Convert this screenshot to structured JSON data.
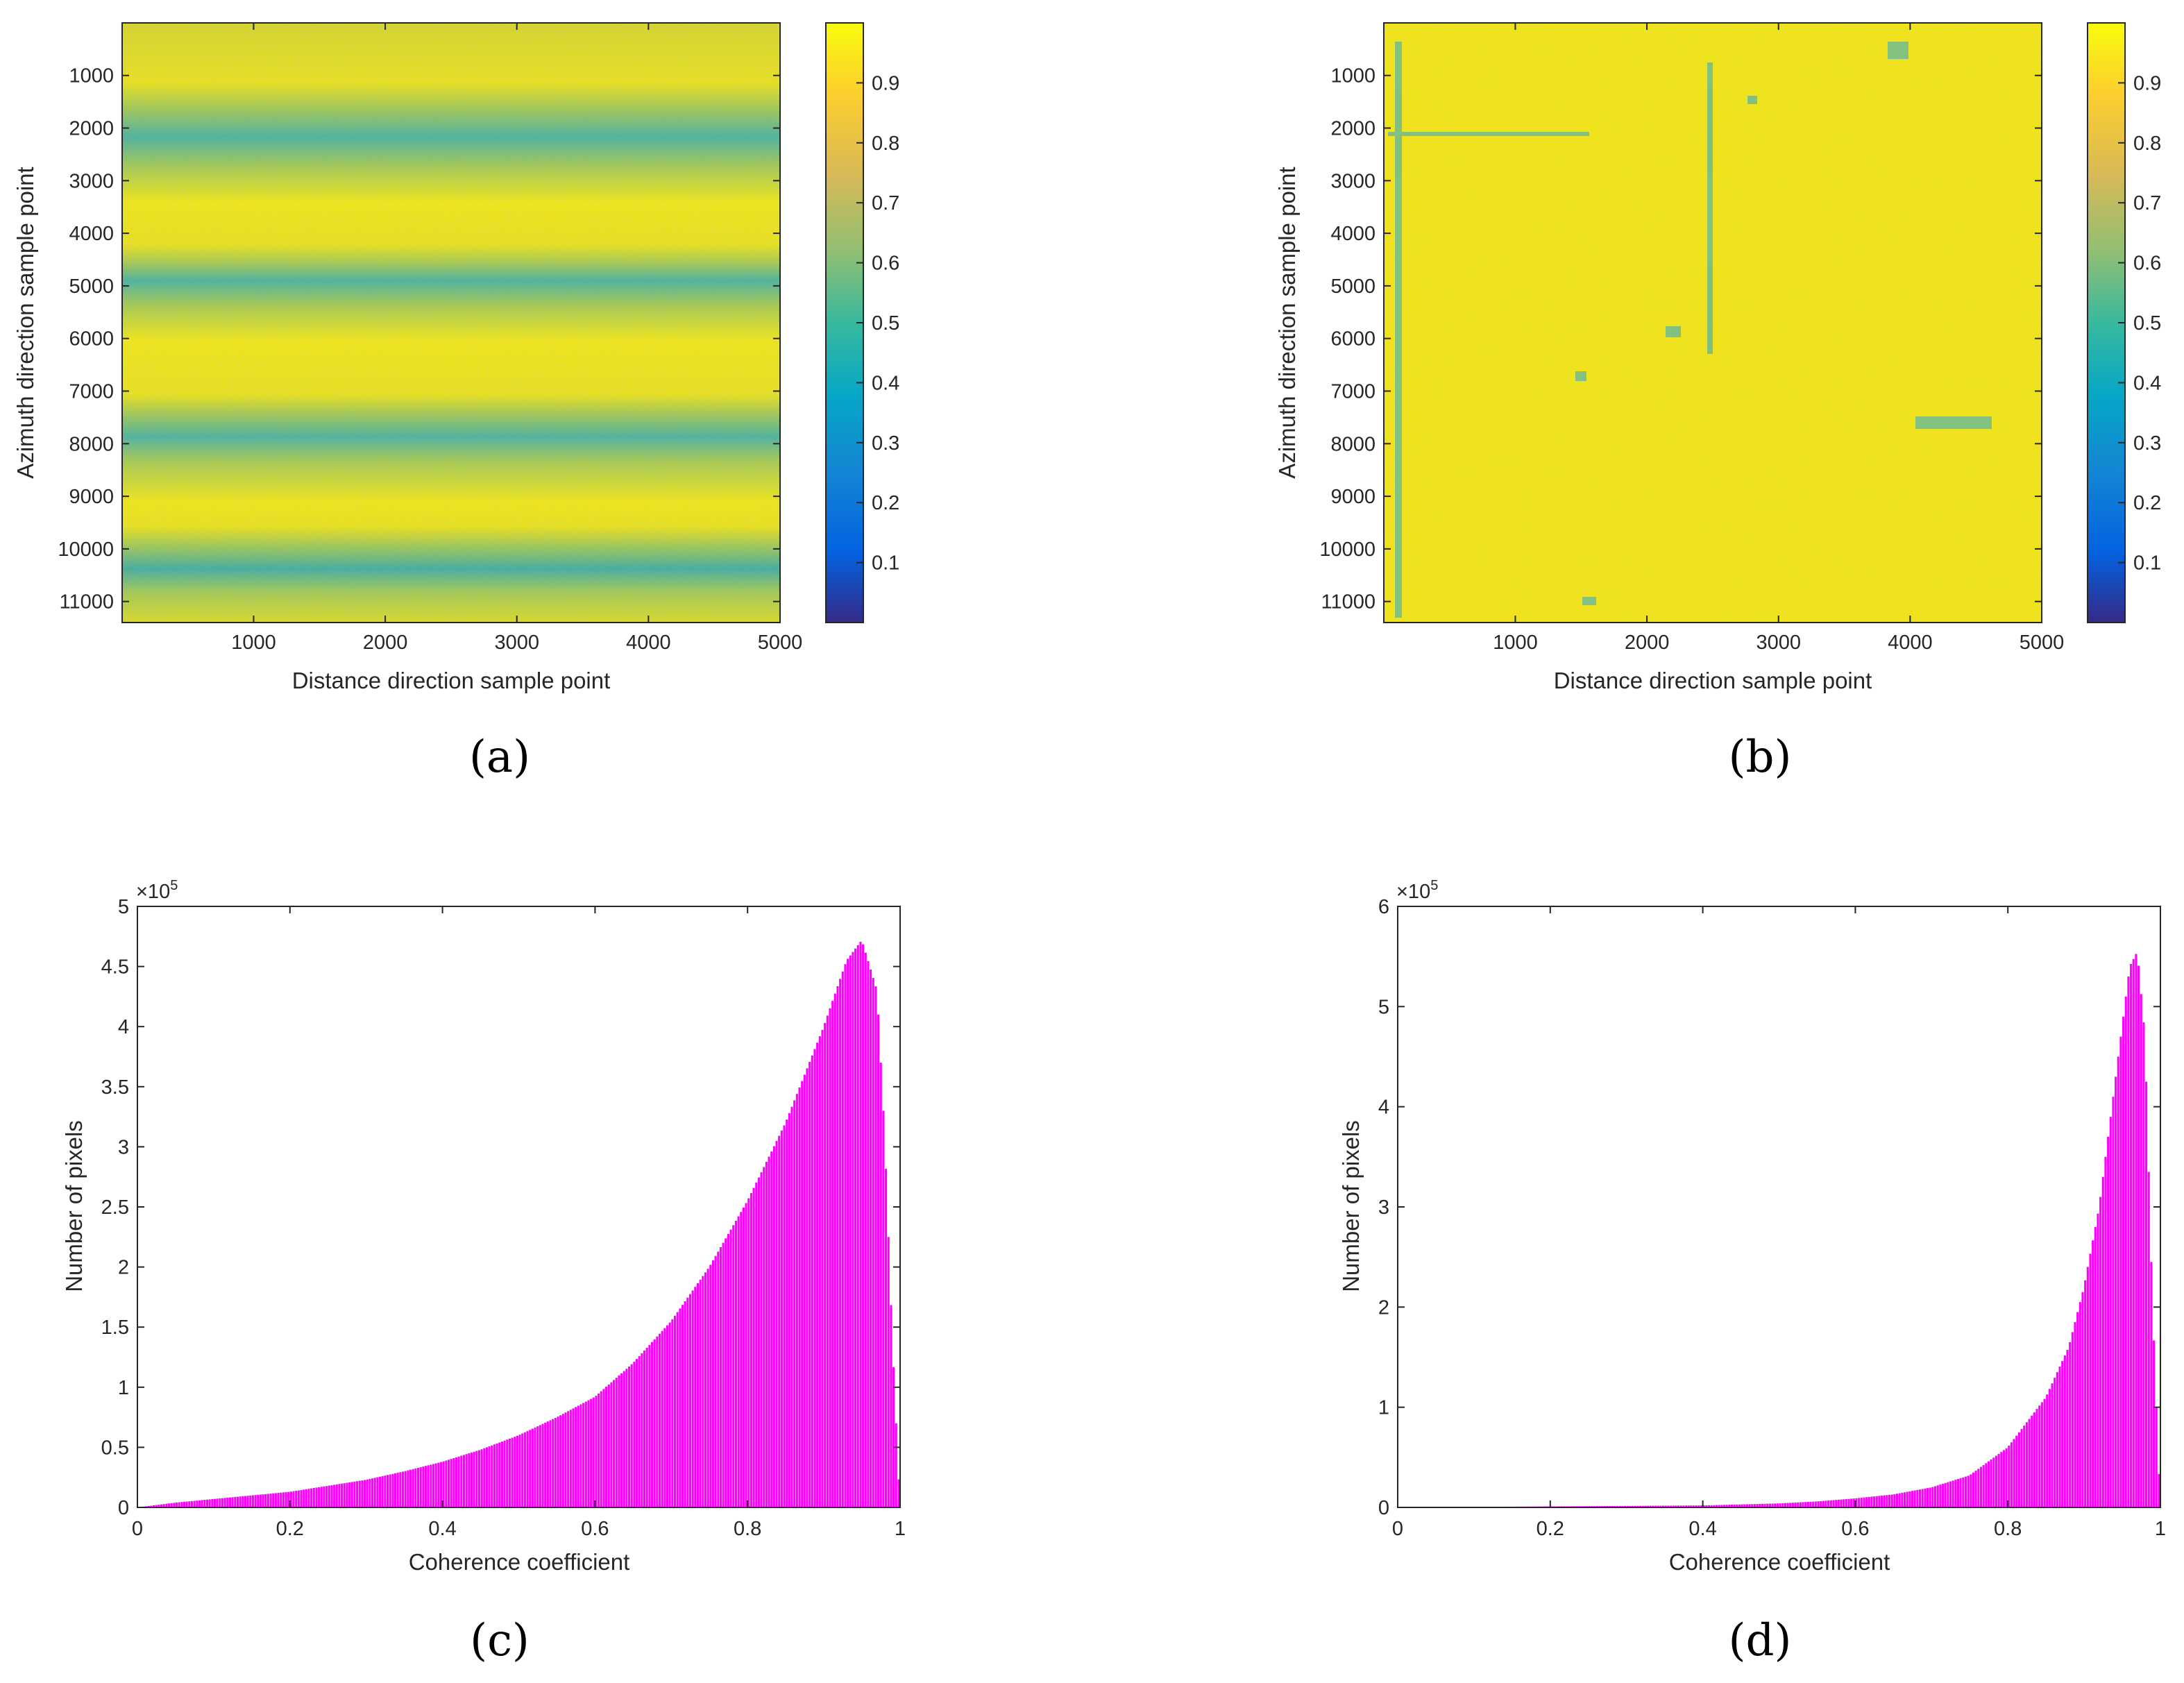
{
  "chart_data": [
    {
      "type": "heatmap",
      "panel_label": "(a)",
      "xlabel": "Distance direction sample point",
      "ylabel": "Azimuth direction sample point",
      "xlim": [
        1,
        5000
      ],
      "ylim": [
        1,
        11400
      ],
      "xticks": [
        "1000",
        "2000",
        "3000",
        "4000",
        "5000"
      ],
      "yticks": [
        "1000",
        "2000",
        "3000",
        "4000",
        "5000",
        "6000",
        "7000",
        "8000",
        "9000",
        "10000",
        "11000"
      ],
      "colorbar": {
        "range": [
          0,
          1
        ],
        "ticks": [
          "0.1",
          "0.2",
          "0.3",
          "0.4",
          "0.5",
          "0.6",
          "0.7",
          "0.8",
          "0.9"
        ]
      },
      "description_values": {
        "band_centers_azimuth": [
          2200,
          4900,
          7800,
          10200
        ],
        "low_coherence": 0.45,
        "high_coherence": 0.95
      }
    },
    {
      "type": "heatmap",
      "panel_label": "(b)",
      "xlabel": "Distance direction sample point",
      "ylabel": "Azimuth direction sample point",
      "xlim": [
        1,
        5000
      ],
      "ylim": [
        1,
        11400
      ],
      "xticks": [
        "1000",
        "2000",
        "3000",
        "4000",
        "5000"
      ],
      "yticks": [
        "1000",
        "2000",
        "3000",
        "4000",
        "5000",
        "6000",
        "7000",
        "8000",
        "9000",
        "10000",
        "11000"
      ],
      "colorbar": {
        "range": [
          0,
          1
        ],
        "ticks": [
          "0.1",
          "0.2",
          "0.3",
          "0.4",
          "0.5",
          "0.6",
          "0.7",
          "0.8",
          "0.9"
        ]
      },
      "description_values": {
        "mean_coherence": 0.95
      }
    },
    {
      "type": "bar",
      "panel_label": "(c)",
      "xlabel": "Coherence coefficient",
      "ylabel": "Number of pixels",
      "exponent_label": "×10",
      "exponent_power": "5",
      "xlim": [
        0,
        1
      ],
      "ylim": [
        0,
        5
      ],
      "xticks": [
        "0",
        "0.2",
        "0.4",
        "0.6",
        "0.8",
        "1"
      ],
      "yticks": [
        "0",
        "0.5",
        "1",
        "1.5",
        "2",
        "2.5",
        "3",
        "3.5",
        "4",
        "4.5",
        "5"
      ],
      "bar_color": "#ff00ff",
      "x": [
        0,
        0.05,
        0.1,
        0.15,
        0.2,
        0.25,
        0.3,
        0.35,
        0.4,
        0.45,
        0.5,
        0.55,
        0.6,
        0.65,
        0.7,
        0.75,
        0.8,
        0.85,
        0.9,
        0.93,
        0.95,
        0.97,
        0.98,
        0.99,
        1.0
      ],
      "values": [
        0.0,
        0.04,
        0.07,
        0.1,
        0.13,
        0.18,
        0.23,
        0.3,
        0.38,
        0.48,
        0.6,
        0.75,
        0.92,
        1.2,
        1.55,
        2.0,
        2.55,
        3.2,
        4.0,
        4.55,
        4.72,
        4.3,
        3.1,
        1.4,
        0.0
      ]
    },
    {
      "type": "bar",
      "panel_label": "(d)",
      "xlabel": "Coherence coefficient",
      "ylabel": "Number of pixels",
      "exponent_label": "×10",
      "exponent_power": "5",
      "xlim": [
        0,
        1
      ],
      "ylim": [
        0,
        6
      ],
      "xticks": [
        "0",
        "0.2",
        "0.4",
        "0.6",
        "0.8",
        "1"
      ],
      "yticks": [
        "0",
        "1",
        "2",
        "3",
        "4",
        "5",
        "6"
      ],
      "bar_color": "#ff00ff",
      "x": [
        0,
        0.1,
        0.2,
        0.3,
        0.4,
        0.5,
        0.55,
        0.6,
        0.65,
        0.7,
        0.75,
        0.8,
        0.85,
        0.88,
        0.9,
        0.92,
        0.94,
        0.96,
        0.97,
        0.98,
        0.99,
        1.0
      ],
      "values": [
        0.0,
        0.005,
        0.01,
        0.015,
        0.02,
        0.04,
        0.06,
        0.09,
        0.13,
        0.2,
        0.32,
        0.6,
        1.1,
        1.6,
        2.2,
        3.0,
        4.2,
        5.4,
        5.55,
        4.7,
        2.0,
        0.0
      ]
    }
  ]
}
